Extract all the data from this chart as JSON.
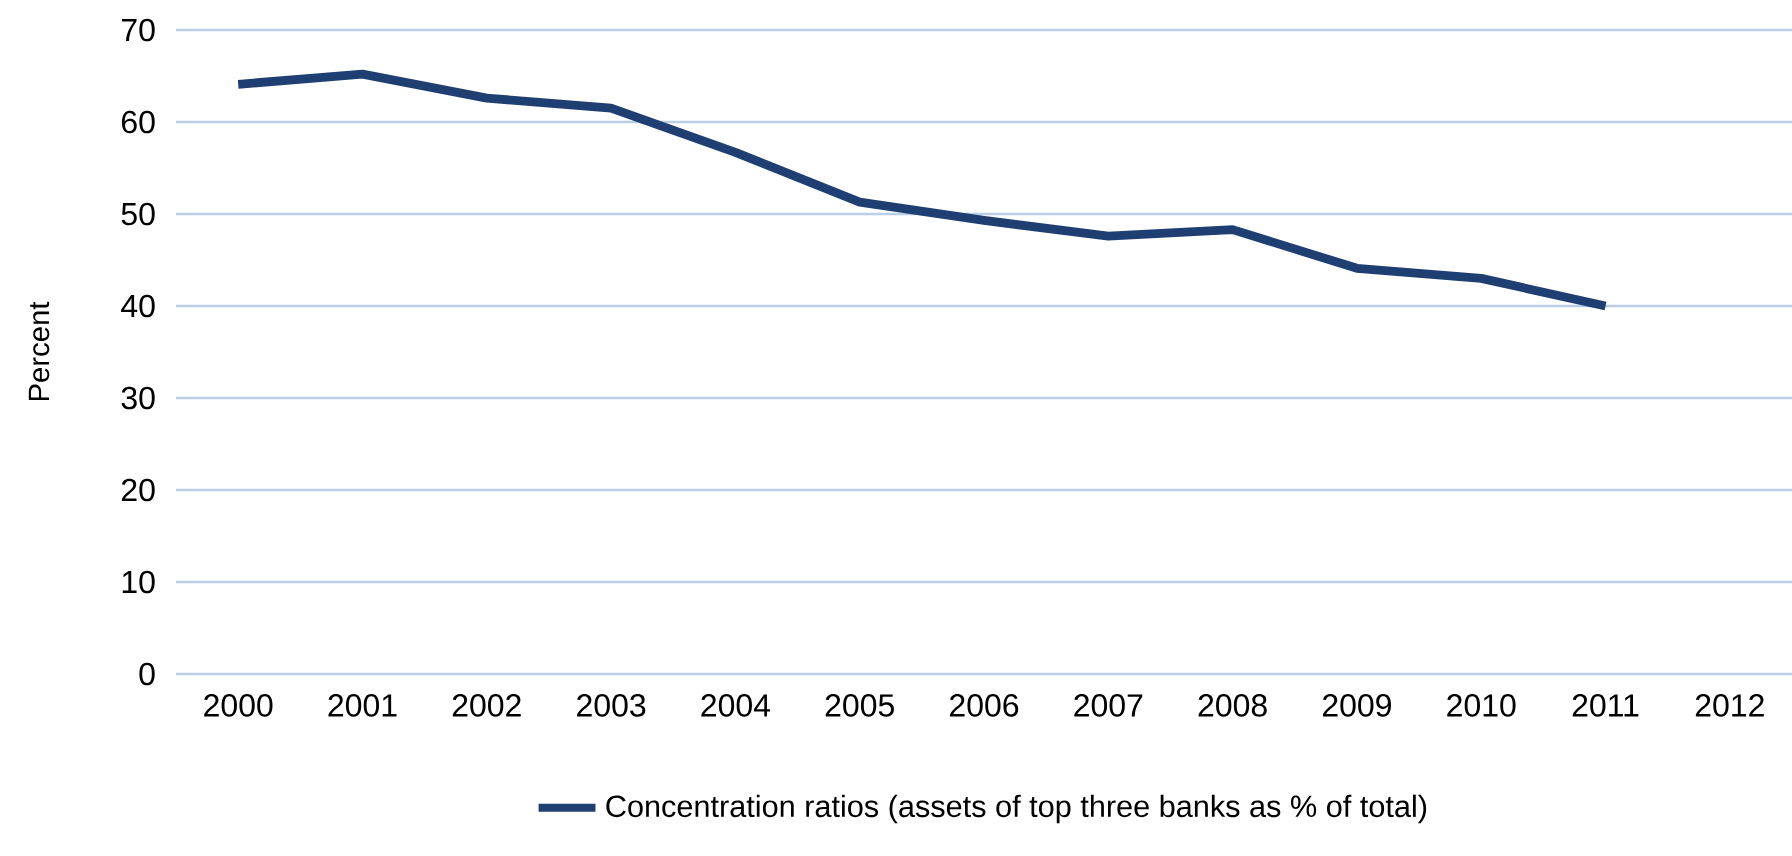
{
  "chart_data": {
    "type": "line",
    "ylabel": "Percent",
    "categories": [
      "2000",
      "2001",
      "2002",
      "2003",
      "2004",
      "2005",
      "2006",
      "2007",
      "2008",
      "2009",
      "2010",
      "2011",
      "2012"
    ],
    "series": [
      {
        "name": "Concentration ratios (assets of top three banks as % of total)",
        "color": "#1f3f73",
        "values": [
          64.1,
          65.2,
          62.6,
          61.5,
          56.7,
          51.3,
          49.3,
          47.6,
          48.3,
          44.1,
          43.0,
          40.0,
          null
        ]
      }
    ],
    "ylim": [
      0,
      70
    ],
    "yticks": [
      0,
      10,
      20,
      30,
      40,
      50,
      60,
      70
    ],
    "grid": "y",
    "legend": "bottom",
    "marker": "none",
    "line_style": "solid"
  }
}
